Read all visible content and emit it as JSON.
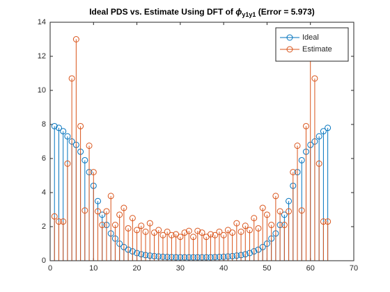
{
  "chart_data": {
    "type": "stem",
    "title_parts": [
      "Ideal PDS vs. Estimate Using DFT of ",
      "ϕ",
      "y1y1",
      " (Error =  5.973)"
    ],
    "x": [
      1,
      2,
      3,
      4,
      5,
      6,
      7,
      8,
      9,
      10,
      11,
      12,
      13,
      14,
      15,
      16,
      17,
      18,
      19,
      20,
      21,
      22,
      23,
      24,
      25,
      26,
      27,
      28,
      29,
      30,
      31,
      32,
      33,
      34,
      35,
      36,
      37,
      38,
      39,
      40,
      41,
      42,
      43,
      44,
      45,
      46,
      47,
      48,
      49,
      50,
      51,
      52,
      53,
      54,
      55,
      56,
      57,
      58,
      59,
      60,
      61,
      62,
      63,
      64
    ],
    "series": [
      {
        "name": "Ideal",
        "color": "#0072BD",
        "values": [
          7.9,
          7.8,
          7.6,
          7.3,
          7.0,
          6.8,
          6.4,
          5.9,
          5.2,
          4.4,
          3.5,
          2.7,
          2.1,
          1.6,
          1.3,
          1.0,
          0.8,
          0.65,
          0.55,
          0.45,
          0.38,
          0.33,
          0.3,
          0.27,
          0.25,
          0.23,
          0.22,
          0.21,
          0.2,
          0.2,
          0.2,
          0.2,
          0.2,
          0.2,
          0.2,
          0.2,
          0.2,
          0.21,
          0.22,
          0.23,
          0.25,
          0.27,
          0.3,
          0.33,
          0.38,
          0.45,
          0.55,
          0.65,
          0.8,
          1.0,
          1.3,
          1.6,
          2.1,
          2.7,
          3.5,
          4.4,
          5.2,
          5.9,
          6.4,
          6.8,
          7.0,
          7.3,
          7.6,
          7.8
        ]
      },
      {
        "name": "Estimate",
        "color": "#D95319",
        "values": [
          2.6,
          2.3,
          2.3,
          5.7,
          10.7,
          13.0,
          7.9,
          2.95,
          6.75,
          5.2,
          2.9,
          2.1,
          2.9,
          3.8,
          2.1,
          2.7,
          3.1,
          1.9,
          2.5,
          1.8,
          2.05,
          1.7,
          2.2,
          1.65,
          1.8,
          1.5,
          1.7,
          1.5,
          1.55,
          1.4,
          1.65,
          1.75,
          1.4,
          1.75,
          1.65,
          1.4,
          1.55,
          1.5,
          1.7,
          1.5,
          1.8,
          1.65,
          2.2,
          1.7,
          2.05,
          1.8,
          2.5,
          1.9,
          3.1,
          2.7,
          2.1,
          3.8,
          2.9,
          2.1,
          2.9,
          5.2,
          6.75,
          2.95,
          7.9,
          13.0,
          10.7,
          5.7,
          2.3,
          2.3
        ]
      }
    ],
    "xlim": [
      0,
      70
    ],
    "xticks": [
      0,
      10,
      20,
      30,
      40,
      50,
      60,
      70
    ],
    "ylim": [
      0,
      14
    ],
    "yticks": [
      0,
      2,
      4,
      6,
      8,
      10,
      12,
      14
    ],
    "legend": "northeast"
  }
}
